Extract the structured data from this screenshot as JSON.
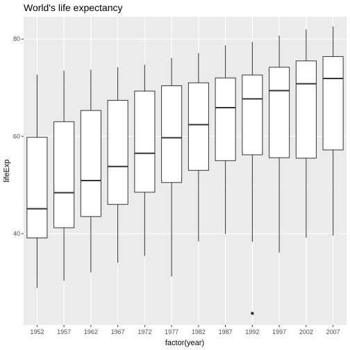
{
  "chart_data": {
    "type": "boxplot",
    "title": "World's life expectancy",
    "xlabel": "factor(year)",
    "ylabel": "lifeExp",
    "ylim": [
      21.2,
      84.6
    ],
    "yticks": [
      40,
      60,
      80
    ],
    "grid": true,
    "legend": "none",
    "colors": {
      "panel_background": "#ebebeb",
      "grid_major": "#ffffff",
      "grid_minor": "#f5f5f5",
      "box_fill": "#ffffff",
      "box_line": "#333333",
      "tick_text": "#4d4d4d"
    },
    "categories": [
      "1952",
      "1957",
      "1962",
      "1967",
      "1972",
      "1977",
      "1982",
      "1987",
      "1992",
      "1997",
      "2002",
      "2007"
    ],
    "boxes": [
      {
        "year": "1952",
        "whisker_low": 28.8,
        "q1": 39.1,
        "median": 45.1,
        "q3": 59.8,
        "whisker_high": 72.7,
        "outliers": []
      },
      {
        "year": "1957",
        "whisker_low": 30.3,
        "q1": 41.2,
        "median": 48.4,
        "q3": 63.0,
        "whisker_high": 73.5,
        "outliers": []
      },
      {
        "year": "1962",
        "whisker_low": 32.0,
        "q1": 43.5,
        "median": 50.9,
        "q3": 65.3,
        "whisker_high": 73.7,
        "outliers": []
      },
      {
        "year": "1967",
        "whisker_low": 34.0,
        "q1": 46.0,
        "median": 53.8,
        "q3": 67.4,
        "whisker_high": 74.2,
        "outliers": []
      },
      {
        "year": "1972",
        "whisker_low": 35.4,
        "q1": 48.5,
        "median": 56.5,
        "q3": 69.3,
        "whisker_high": 74.7,
        "outliers": []
      },
      {
        "year": "1977",
        "whisker_low": 31.2,
        "q1": 50.5,
        "median": 59.7,
        "q3": 70.4,
        "whisker_high": 76.1,
        "outliers": []
      },
      {
        "year": "1982",
        "whisker_low": 38.4,
        "q1": 53.0,
        "median": 62.4,
        "q3": 71.0,
        "whisker_high": 77.1,
        "outliers": []
      },
      {
        "year": "1987",
        "whisker_low": 39.9,
        "q1": 55.0,
        "median": 65.9,
        "q3": 72.0,
        "whisker_high": 78.7,
        "outliers": []
      },
      {
        "year": "1992",
        "whisker_low": 38.3,
        "q1": 56.2,
        "median": 67.7,
        "q3": 72.6,
        "whisker_high": 79.4,
        "outliers": [
          23.6
        ]
      },
      {
        "year": "1997",
        "whisker_low": 36.1,
        "q1": 55.6,
        "median": 69.4,
        "q3": 74.2,
        "whisker_high": 80.7,
        "outliers": []
      },
      {
        "year": "2002",
        "whisker_low": 39.2,
        "q1": 55.5,
        "median": 70.8,
        "q3": 75.5,
        "whisker_high": 82.0,
        "outliers": []
      },
      {
        "year": "2007",
        "whisker_low": 39.6,
        "q1": 57.2,
        "median": 71.9,
        "q3": 76.4,
        "whisker_high": 82.6,
        "outliers": []
      }
    ]
  }
}
